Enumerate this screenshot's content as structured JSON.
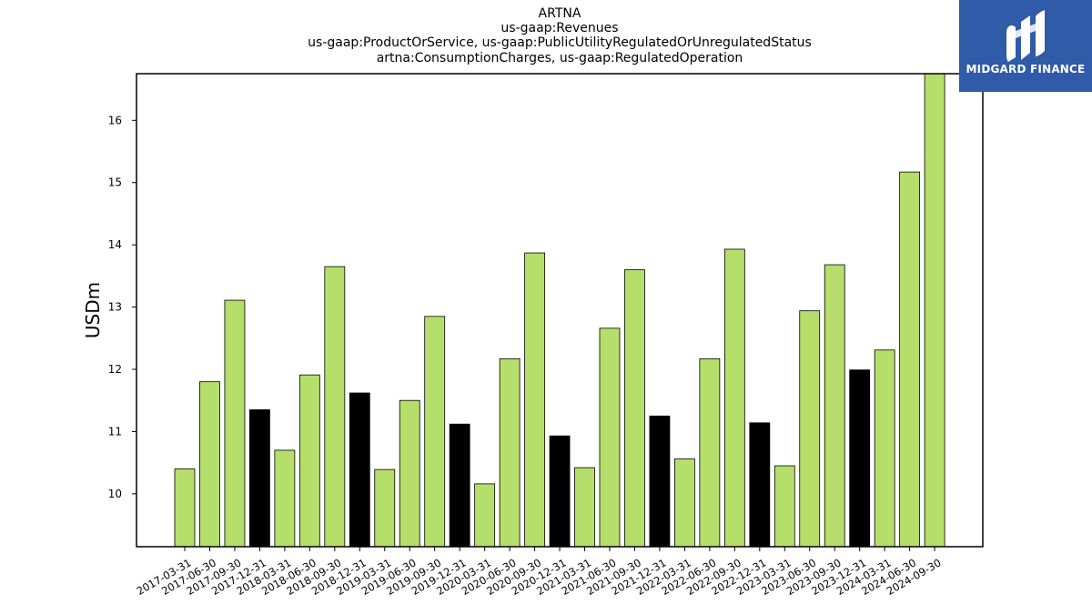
{
  "titles": [
    "ARTNA",
    "us-gaap:Revenues",
    "us-gaap:ProductOrService, us-gaap:PublicUtilityRegulatedOrUnregulatedStatus",
    "artna:ConsumptionCharges, us-gaap:RegulatedOperation"
  ],
  "logo": {
    "text": "MIDGARD FINANCE",
    "color": "#2f5ba8"
  },
  "chart_data": {
    "type": "bar",
    "ylabel": "USDm",
    "xlabel": "",
    "ylim": [
      9.15,
      16.75
    ],
    "yticks": [
      10,
      11,
      12,
      13,
      14,
      15,
      16
    ],
    "colors": {
      "default": "#b5de6a",
      "q4": "#000000"
    },
    "categories": [
      "2017-03-31",
      "2017-06-30",
      "2017-09-30",
      "2017-12-31",
      "2018-03-31",
      "2018-06-30",
      "2018-09-30",
      "2018-12-31",
      "2019-03-31",
      "2019-06-30",
      "2019-09-30",
      "2019-12-31",
      "2020-03-31",
      "2020-06-30",
      "2020-09-30",
      "2020-12-31",
      "2021-03-31",
      "2021-06-30",
      "2021-09-30",
      "2021-12-31",
      "2022-03-31",
      "2022-06-30",
      "2022-09-30",
      "2022-12-31",
      "2023-03-31",
      "2023-06-30",
      "2023-09-30",
      "2023-12-31",
      "2024-03-31",
      "2024-06-30",
      "2024-09-30"
    ],
    "values": [
      10.4,
      11.8,
      13.11,
      11.35,
      10.7,
      11.91,
      13.65,
      11.62,
      10.39,
      11.5,
      12.85,
      11.12,
      10.16,
      12.17,
      13.87,
      10.93,
      10.42,
      12.66,
      13.6,
      11.25,
      10.56,
      12.17,
      13.93,
      11.14,
      10.45,
      12.94,
      13.68,
      11.99,
      12.31,
      15.17,
      16.75
    ],
    "highlight": [
      false,
      false,
      false,
      true,
      false,
      false,
      false,
      true,
      false,
      false,
      false,
      true,
      false,
      false,
      false,
      true,
      false,
      false,
      false,
      true,
      false,
      false,
      false,
      true,
      false,
      false,
      false,
      true,
      false,
      false,
      false
    ]
  }
}
